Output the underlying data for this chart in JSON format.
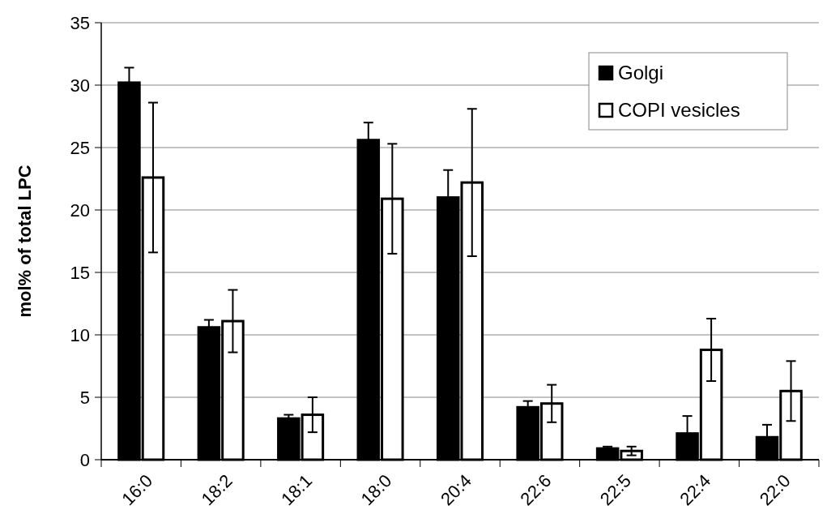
{
  "chart_data": {
    "type": "bar",
    "ylabel": "mol% of total LPC",
    "categories": [
      "16:0",
      "18:2",
      "18:1",
      "18:0",
      "20:4",
      "22:6",
      "22:5",
      "22:4",
      "22:0"
    ],
    "series": [
      {
        "name": "Golgi",
        "color": "#000000",
        "values": [
          30.2,
          10.6,
          3.3,
          25.6,
          21.0,
          4.2,
          0.9,
          2.1,
          1.8
        ],
        "errors": [
          1.2,
          0.6,
          0.3,
          1.4,
          2.2,
          0.5,
          0.15,
          1.4,
          1.0
        ]
      },
      {
        "name": "COPI vesicles",
        "color": "#ffffff",
        "values": [
          22.6,
          11.1,
          3.6,
          20.9,
          22.2,
          4.5,
          0.7,
          8.8,
          5.5
        ],
        "errors": [
          6.0,
          2.5,
          1.4,
          4.4,
          5.9,
          1.5,
          0.35,
          2.5,
          2.4
        ]
      }
    ],
    "ylim": [
      0,
      35
    ],
    "yticks": [
      0,
      5,
      10,
      15,
      20,
      25,
      30,
      35
    ],
    "grid": "y",
    "legend": "top right"
  }
}
